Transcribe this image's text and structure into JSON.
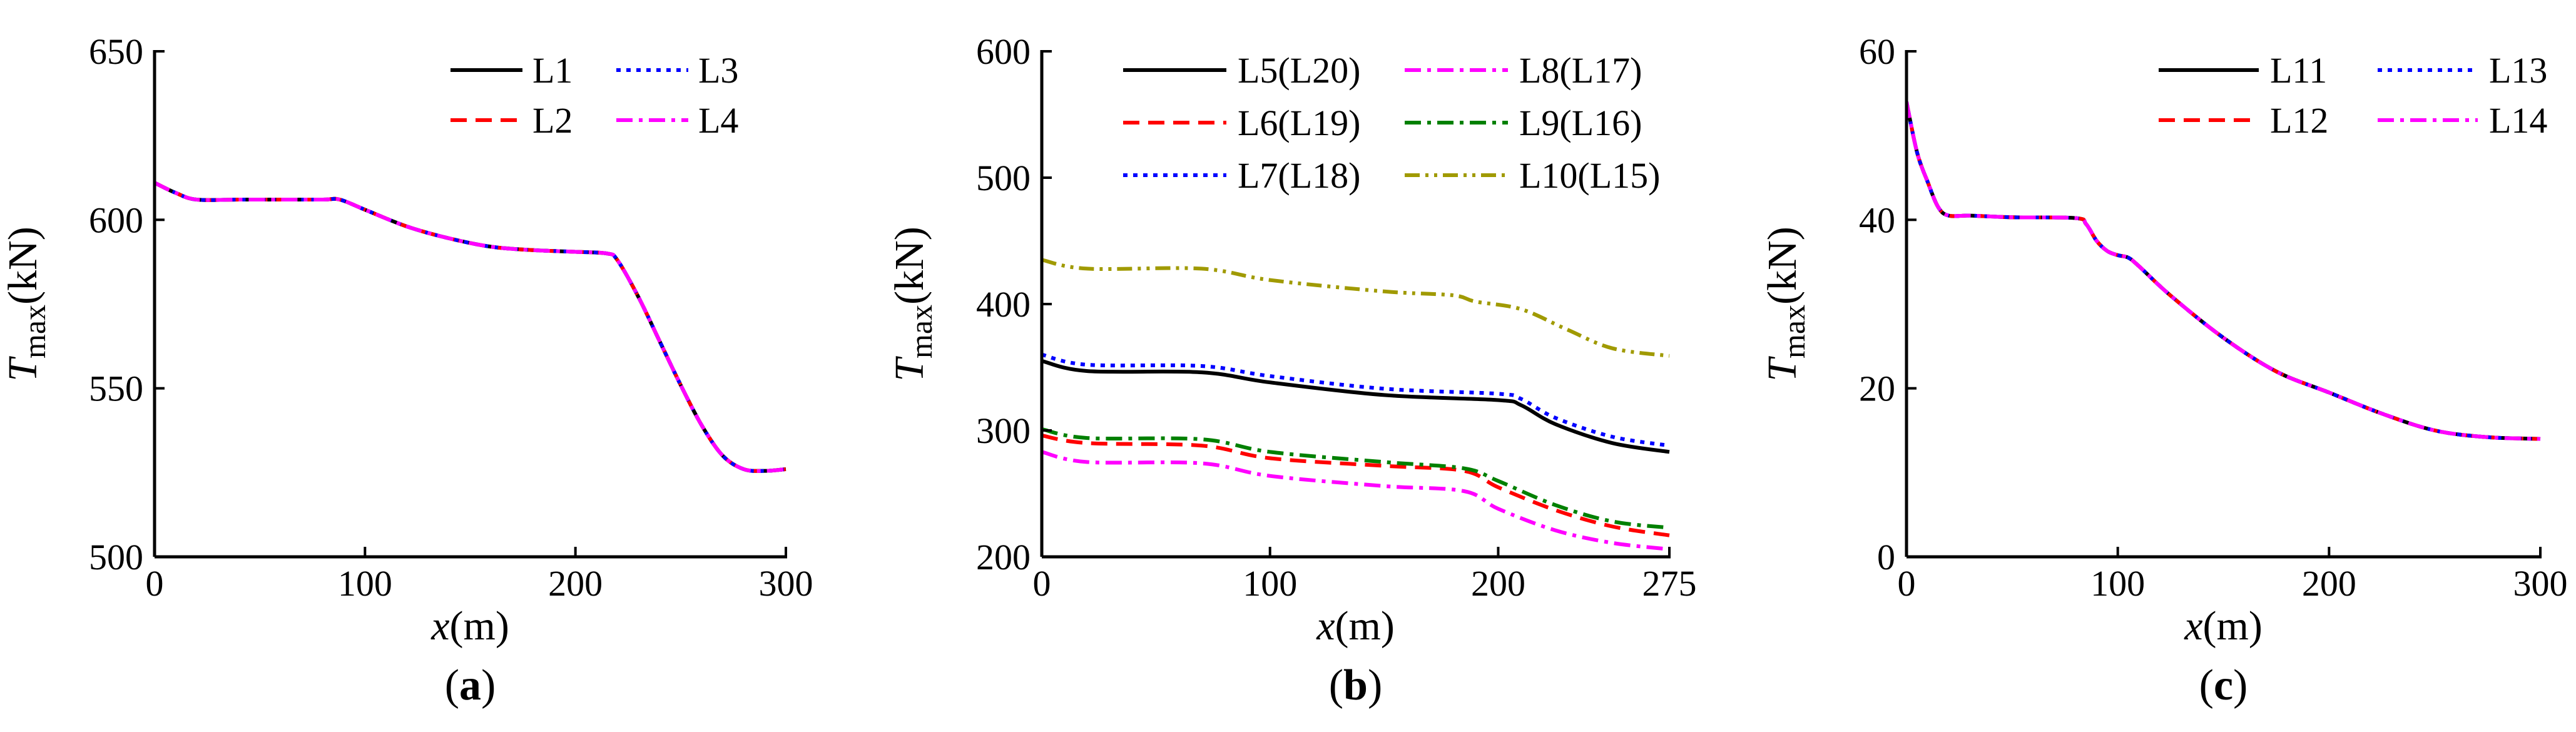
{
  "figure": {
    "panels": [
      "(a)",
      "(b)",
      "(c)"
    ]
  },
  "chart_data": [
    {
      "panel": "(a)",
      "type": "line",
      "title": "",
      "xlabel": "x(m)",
      "ylabel": "Tmax(kN)",
      "xlim": [
        0,
        300
      ],
      "ylim": [
        500,
        650
      ],
      "xticks": [
        0,
        100,
        200,
        300
      ],
      "yticks": [
        500,
        550,
        600,
        650
      ],
      "grid": false,
      "legend_position": "top-right",
      "legend_columns": 2,
      "series": [
        {
          "name": "L1",
          "color": "#000000",
          "dash": "solid",
          "x": [
            0,
            10,
            20,
            40,
            60,
            80,
            88,
            100,
            120,
            140,
            160,
            180,
            200,
            215,
            220,
            230,
            240,
            250,
            260,
            270,
            280,
            290,
            300
          ],
          "y": [
            611,
            608,
            606,
            606,
            606,
            606,
            606,
            603,
            598,
            594.5,
            592,
            591,
            590.5,
            590,
            588,
            577,
            564,
            551,
            539,
            530,
            526,
            525.5,
            526
          ]
        },
        {
          "name": "L2",
          "color": "#ff0000",
          "dash": "dashed",
          "x": [
            0,
            10,
            20,
            40,
            60,
            80,
            88,
            100,
            120,
            140,
            160,
            180,
            200,
            215,
            220,
            230,
            240,
            250,
            260,
            270,
            280,
            290,
            300
          ],
          "y": [
            611,
            608,
            606,
            606,
            606,
            606,
            606,
            603,
            598,
            594.5,
            592,
            591,
            590.5,
            590,
            588,
            577,
            564,
            551,
            539,
            530,
            526,
            525.5,
            526
          ]
        },
        {
          "name": "L3",
          "color": "#0000ff",
          "dash": "dotted",
          "x": [
            0,
            10,
            20,
            40,
            60,
            80,
            88,
            100,
            120,
            140,
            160,
            180,
            200,
            215,
            220,
            230,
            240,
            250,
            260,
            270,
            280,
            290,
            300
          ],
          "y": [
            611,
            608,
            606,
            606,
            606,
            606,
            606,
            603,
            598,
            594.5,
            592,
            591,
            590.5,
            590,
            588,
            577,
            564,
            551,
            539,
            530,
            526,
            525.5,
            526
          ]
        },
        {
          "name": "L4",
          "color": "#ff00ff",
          "dash": "dashdot",
          "x": [
            0,
            10,
            20,
            40,
            60,
            80,
            88,
            100,
            120,
            140,
            160,
            180,
            200,
            215,
            220,
            230,
            240,
            250,
            260,
            270,
            280,
            290,
            300
          ],
          "y": [
            611,
            608,
            606,
            606,
            606,
            606,
            606,
            603,
            598,
            594.5,
            592,
            591,
            590.5,
            590,
            588,
            577,
            564,
            551,
            539,
            530,
            526,
            525.5,
            526
          ]
        }
      ]
    },
    {
      "panel": "(b)",
      "type": "line",
      "title": "",
      "xlabel": "x(m)",
      "ylabel": "Tmax(kN)",
      "xlim": [
        0,
        275
      ],
      "ylim": [
        200,
        600
      ],
      "xticks": [
        0,
        100,
        200,
        275
      ],
      "yticks": [
        200,
        300,
        400,
        500,
        600
      ],
      "grid": false,
      "legend_position": "top",
      "legend_columns": 2,
      "series": [
        {
          "name": "L5(L20)",
          "color": "#000000",
          "dash": "solid",
          "x": [
            0,
            20,
            70,
            100,
            150,
            200,
            210,
            225,
            250,
            275
          ],
          "y": [
            355,
            347,
            346,
            338,
            328,
            324,
            320,
            305,
            290,
            283
          ]
        },
        {
          "name": "L6(L19)",
          "color": "#ff0000",
          "dash": "dashed",
          "x": [
            0,
            20,
            70,
            100,
            150,
            185,
            200,
            225,
            250,
            275
          ],
          "y": [
            296,
            290,
            288,
            278,
            272,
            268,
            255,
            237,
            224,
            217
          ]
        },
        {
          "name": "L7(L18)",
          "color": "#0000ff",
          "dash": "dotted",
          "x": [
            0,
            20,
            70,
            100,
            150,
            200,
            210,
            225,
            250,
            275
          ],
          "y": [
            360,
            352,
            351,
            343,
            333,
            329,
            325,
            310,
            295,
            288
          ]
        },
        {
          "name": "L8(L17)",
          "color": "#ff00ff",
          "dash": "dashdot",
          "x": [
            0,
            20,
            70,
            100,
            150,
            185,
            200,
            225,
            250,
            275
          ],
          "y": [
            283,
            275,
            274,
            264,
            256,
            252,
            238,
            221,
            211,
            206
          ]
        },
        {
          "name": "L9(L16)",
          "color": "#008000",
          "dash": "dashdot",
          "x": [
            0,
            20,
            70,
            100,
            150,
            185,
            200,
            225,
            250,
            275
          ],
          "y": [
            301,
            294,
            293,
            283,
            275,
            270,
            260,
            241,
            228,
            223
          ]
        },
        {
          "name": "L10(L15)",
          "color": "#a09a00",
          "dash": "dashdotdot",
          "x": [
            0,
            20,
            70,
            100,
            150,
            180,
            190,
            210,
            230,
            250,
            275
          ],
          "y": [
            435,
            428,
            428,
            419,
            410,
            407,
            402,
            396,
            380,
            365,
            359
          ]
        }
      ]
    },
    {
      "panel": "(c)",
      "type": "line",
      "title": "",
      "xlabel": "x(m)",
      "ylabel": "Tmax(kN)",
      "xlim": [
        0,
        300
      ],
      "ylim": [
        0,
        60
      ],
      "xticks": [
        0,
        100,
        200,
        300
      ],
      "yticks": [
        0,
        20,
        40,
        60
      ],
      "grid": false,
      "legend_position": "top-right",
      "legend_columns": 2,
      "series": [
        {
          "name": "L11",
          "color": "#000000",
          "dash": "solid",
          "x": [
            0,
            5,
            10,
            15,
            20,
            30,
            50,
            80,
            85,
            90,
            95,
            100,
            105,
            110,
            125,
            150,
            175,
            200,
            225,
            250,
            275,
            300
          ],
          "y": [
            54,
            48,
            44.5,
            41.5,
            40.5,
            40.5,
            40.3,
            40.2,
            39.5,
            37.5,
            36.3,
            35.8,
            35.5,
            34.5,
            31,
            26,
            22,
            19.5,
            17,
            15,
            14.2,
            14
          ]
        },
        {
          "name": "L12",
          "color": "#ff0000",
          "dash": "dashed",
          "x": [
            0,
            5,
            10,
            15,
            20,
            30,
            50,
            80,
            85,
            90,
            95,
            100,
            105,
            110,
            125,
            150,
            175,
            200,
            225,
            250,
            275,
            300
          ],
          "y": [
            54,
            48,
            44.5,
            41.5,
            40.5,
            40.5,
            40.3,
            40.2,
            39.5,
            37.5,
            36.3,
            35.8,
            35.5,
            34.5,
            31,
            26,
            22,
            19.5,
            17,
            15,
            14.2,
            14
          ]
        },
        {
          "name": "L13",
          "color": "#0000ff",
          "dash": "dotted",
          "x": [
            0,
            5,
            10,
            15,
            20,
            30,
            50,
            80,
            85,
            90,
            95,
            100,
            105,
            110,
            125,
            150,
            175,
            200,
            225,
            250,
            275,
            300
          ],
          "y": [
            54,
            48,
            44.5,
            41.5,
            40.5,
            40.5,
            40.3,
            40.2,
            39.5,
            37.5,
            36.3,
            35.8,
            35.5,
            34.5,
            31,
            26,
            22,
            19.5,
            17,
            15,
            14.2,
            14
          ]
        },
        {
          "name": "L14",
          "color": "#ff00ff",
          "dash": "dashdot",
          "x": [
            0,
            5,
            10,
            15,
            20,
            30,
            50,
            80,
            85,
            90,
            95,
            100,
            105,
            110,
            125,
            150,
            175,
            200,
            225,
            250,
            275,
            300
          ],
          "y": [
            54,
            48,
            44.5,
            41.5,
            40.5,
            40.5,
            40.3,
            40.2,
            39.5,
            37.5,
            36.3,
            35.8,
            35.5,
            34.5,
            31,
            26,
            22,
            19.5,
            17,
            15,
            14.2,
            14
          ]
        }
      ]
    }
  ]
}
